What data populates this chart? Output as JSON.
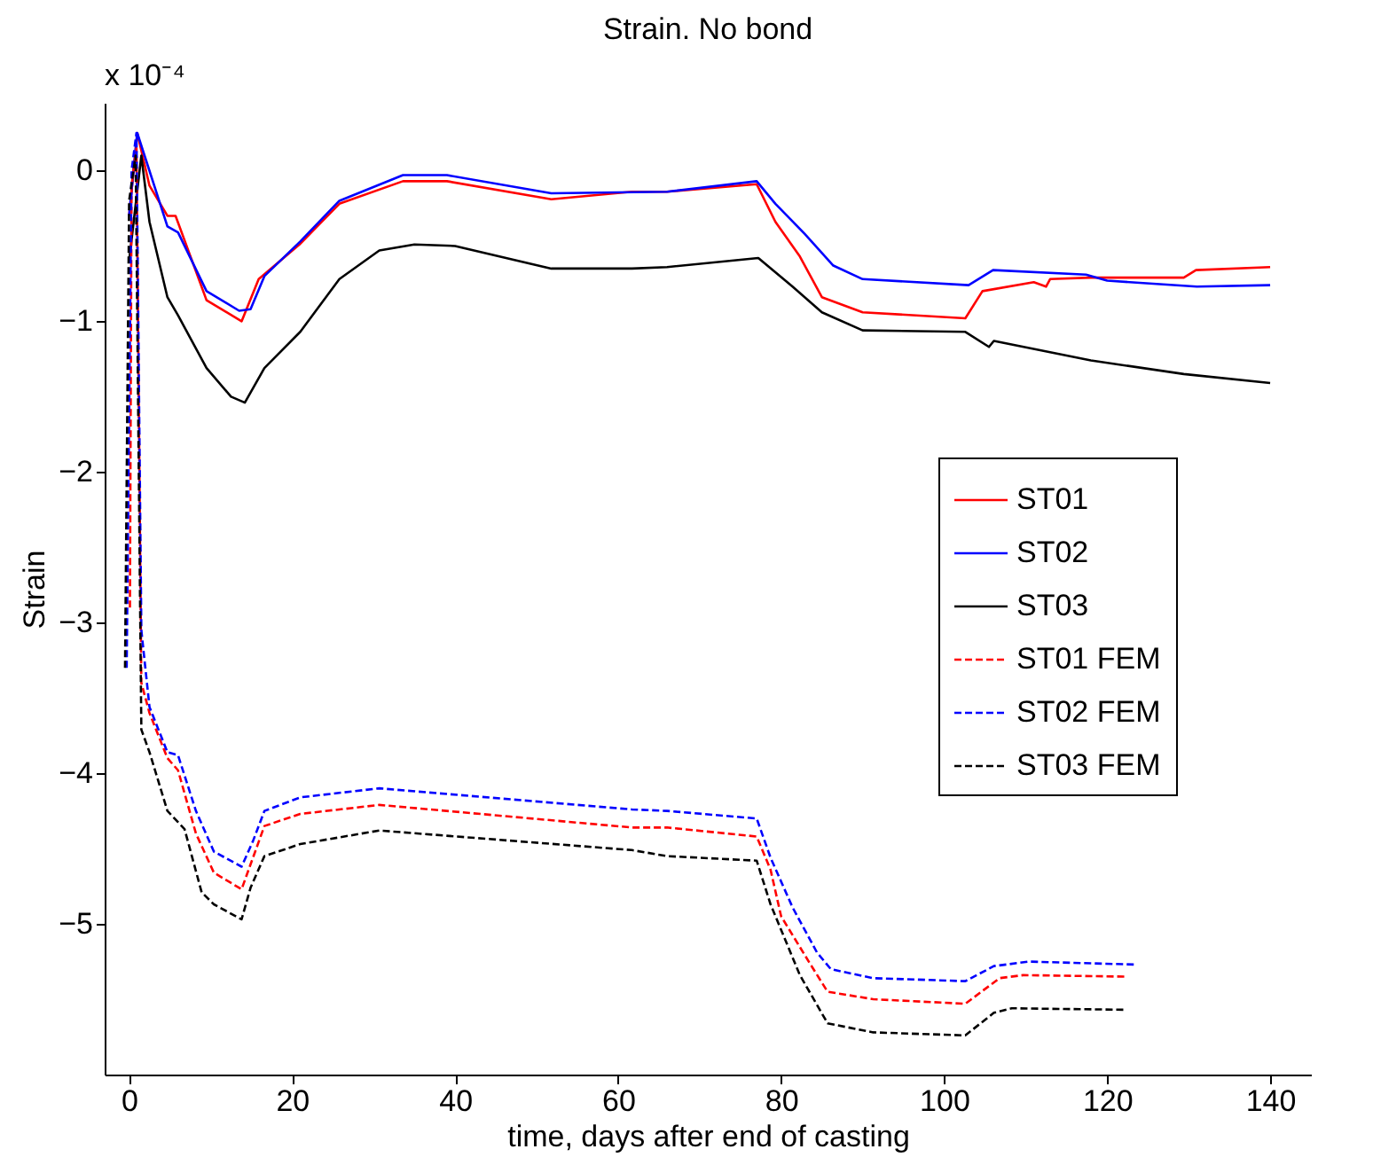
{
  "chart_data": {
    "type": "line",
    "title": "Strain. No bond",
    "xlabel": "time, days after end of casting",
    "ylabel": "Strain",
    "annotations": [
      "x 10⁻⁴"
    ],
    "xlim": [
      -3,
      145
    ],
    "ylim": [
      -6,
      0.45
    ],
    "xticks": [
      0,
      20,
      40,
      60,
      80,
      100,
      120,
      140
    ],
    "yticks": [
      -5,
      -4,
      -3,
      -2,
      -1,
      0
    ],
    "grid": false,
    "legend": "right",
    "marker": "none",
    "series": [
      {
        "name": "ST01",
        "color": "#ff0000",
        "line_style": "solid",
        "x": [
          0,
          1,
          2.5,
          4.7,
          5.7,
          9.5,
          13.8,
          15.9,
          20.9,
          25.8,
          33.6,
          39,
          51.8,
          61.7,
          66,
          77,
          79.3,
          82.3,
          85,
          90,
          102.6,
          104.7,
          111,
          112.5,
          113,
          118,
          129.4,
          130.9,
          140
        ],
        "values": [
          -0.3,
          0.25,
          -0.1,
          -0.3,
          -0.3,
          -0.86,
          -1.0,
          -0.72,
          -0.49,
          -0.22,
          -0.07,
          -0.07,
          -0.19,
          -0.14,
          -0.14,
          -0.09,
          -0.34,
          -0.57,
          -0.84,
          -0.94,
          -0.98,
          -0.8,
          -0.74,
          -0.77,
          -0.72,
          -0.71,
          -0.71,
          -0.66,
          -0.64
        ]
      },
      {
        "name": "ST02",
        "color": "#0000ff",
        "line_style": "solid",
        "x": [
          0,
          1,
          4.7,
          6,
          9.5,
          13.5,
          14.9,
          16.6,
          21,
          25.8,
          33.6,
          39,
          51.8,
          66,
          77,
          79.3,
          82.9,
          86.4,
          90,
          103,
          106,
          117.4,
          120,
          131,
          140
        ],
        "values": [
          -0.3,
          0.25,
          -0.37,
          -0.41,
          -0.8,
          -0.93,
          -0.92,
          -0.7,
          -0.47,
          -0.2,
          -0.03,
          -0.03,
          -0.15,
          -0.14,
          -0.07,
          -0.22,
          -0.42,
          -0.63,
          -0.72,
          -0.76,
          -0.66,
          -0.69,
          -0.73,
          -0.77,
          -0.76
        ]
      },
      {
        "name": "ST03",
        "color": "#000000",
        "line_style": "solid",
        "x": [
          0,
          1.5,
          2.5,
          4.7,
          6,
          9.5,
          12.5,
          14.2,
          16.6,
          21,
          25.8,
          30.7,
          35,
          40,
          51.8,
          61.7,
          66,
          77.2,
          81.4,
          85,
          90,
          102.6,
          105.5,
          106.1,
          118,
          129.4,
          140
        ],
        "values": [
          -0.6,
          0.1,
          -0.34,
          -0.84,
          -0.96,
          -1.31,
          -1.5,
          -1.54,
          -1.31,
          -1.07,
          -0.72,
          -0.53,
          -0.49,
          -0.5,
          -0.65,
          -0.65,
          -0.64,
          -0.58,
          -0.77,
          -0.94,
          -1.06,
          -1.07,
          -1.17,
          -1.13,
          -1.26,
          -1.35,
          -1.41
        ]
      },
      {
        "name": "ST01 FEM",
        "color": "#ff0000",
        "line_style": "dashed",
        "x": [
          0.1,
          0.3,
          0.9,
          1.5,
          2.5,
          4.7,
          6,
          8.2,
          10.4,
          13.8,
          15.2,
          16.6,
          21,
          30.7,
          61.7,
          66,
          77,
          78.7,
          80,
          83.5,
          85.7,
          91.3,
          102.6,
          106.8,
          109.7,
          122.4
        ],
        "values": [
          -2.9,
          -0.1,
          0.15,
          -3.4,
          -3.6,
          -3.9,
          -3.98,
          -4.4,
          -4.66,
          -4.77,
          -4.56,
          -4.35,
          -4.27,
          -4.21,
          -4.36,
          -4.36,
          -4.42,
          -4.64,
          -4.95,
          -5.26,
          -5.45,
          -5.5,
          -5.53,
          -5.36,
          -5.34,
          -5.35
        ]
      },
      {
        "name": "ST02 FEM",
        "color": "#0000ff",
        "line_style": "dashed",
        "x": [
          -0.3,
          0.3,
          0.9,
          1.5,
          2.5,
          4.7,
          6,
          8.2,
          10.4,
          13.8,
          15.2,
          16.6,
          21,
          30.7,
          61.7,
          66,
          77,
          78.7,
          81.4,
          84.4,
          86.1,
          91.3,
          102.6,
          106.1,
          110.4,
          123.7
        ],
        "values": [
          -3.3,
          0,
          0.25,
          -3.05,
          -3.56,
          -3.86,
          -3.88,
          -4.25,
          -4.52,
          -4.62,
          -4.45,
          -4.25,
          -4.16,
          -4.1,
          -4.24,
          -4.25,
          -4.3,
          -4.56,
          -4.89,
          -5.19,
          -5.3,
          -5.36,
          -5.38,
          -5.28,
          -5.25,
          -5.27
        ]
      },
      {
        "name": "ST03 FEM",
        "color": "#000000",
        "line_style": "dashed",
        "x": [
          -0.5,
          0,
          0.8,
          1.5,
          2.5,
          4.7,
          6.8,
          8.9,
          10.4,
          13.8,
          14.9,
          16.6,
          21,
          30.7,
          61.7,
          66,
          77,
          78.7,
          82.3,
          85.7,
          91.3,
          102.6,
          106.1,
          108.3,
          122.4
        ],
        "values": [
          -3.3,
          -0.2,
          0.1,
          -3.71,
          -3.86,
          -4.25,
          -4.37,
          -4.79,
          -4.87,
          -4.97,
          -4.76,
          -4.55,
          -4.47,
          -4.38,
          -4.51,
          -4.55,
          -4.58,
          -4.87,
          -5.34,
          -5.66,
          -5.72,
          -5.74,
          -5.59,
          -5.56,
          -5.57
        ]
      }
    ]
  }
}
